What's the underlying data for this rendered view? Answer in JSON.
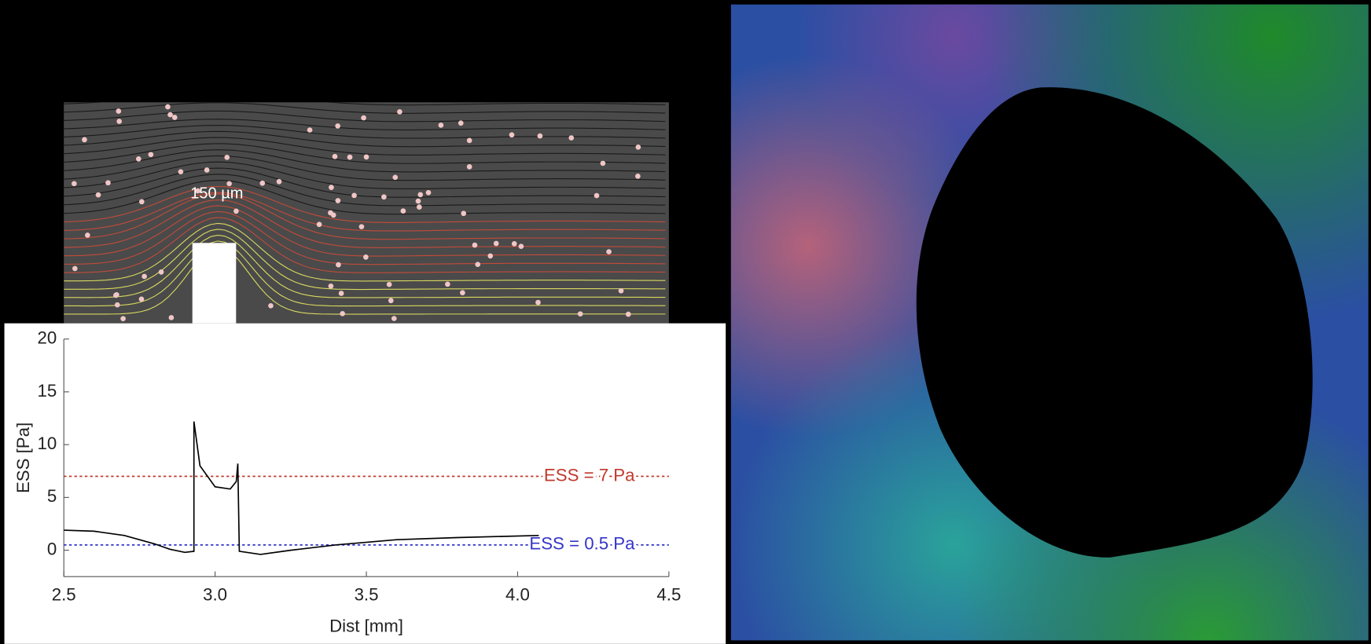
{
  "chart_data": {
    "type": "line",
    "inset_label": "150 µm",
    "xlabel": "Dist [mm]",
    "ylabel": "ESS [Pa]",
    "x": [
      2.5,
      2.6,
      2.7,
      2.8,
      2.85,
      2.9,
      2.93,
      2.93,
      2.95,
      3.0,
      3.05,
      3.07,
      3.075,
      3.08,
      3.15,
      3.25,
      3.4,
      3.6,
      3.8,
      4.07
    ],
    "values": [
      1.9,
      1.8,
      1.4,
      0.6,
      0.1,
      -0.2,
      -0.1,
      12.2,
      8,
      6,
      5.8,
      6.5,
      8.2,
      -0.1,
      -0.4,
      0,
      0.5,
      1.0,
      1.2,
      1.4
    ],
    "color": "#000000",
    "xlim": [
      2.5,
      4.5
    ],
    "xticks": [
      2.5,
      {
        "value": 3,
        "label": "3.0"
      },
      3.5,
      {
        "value": 4,
        "label": "4.0"
      },
      4.5
    ],
    "ylim": [
      -2.5,
      20
    ],
    "yticks": [
      0,
      5,
      10,
      15,
      20
    ],
    "reference_lines": [
      {
        "value": 7,
        "label": "ESS = 7 Pa",
        "color": "#c0392b"
      },
      {
        "value": 0.5,
        "label": "ESS = 0.5 Pa",
        "color": "#3535c8"
      }
    ]
  }
}
